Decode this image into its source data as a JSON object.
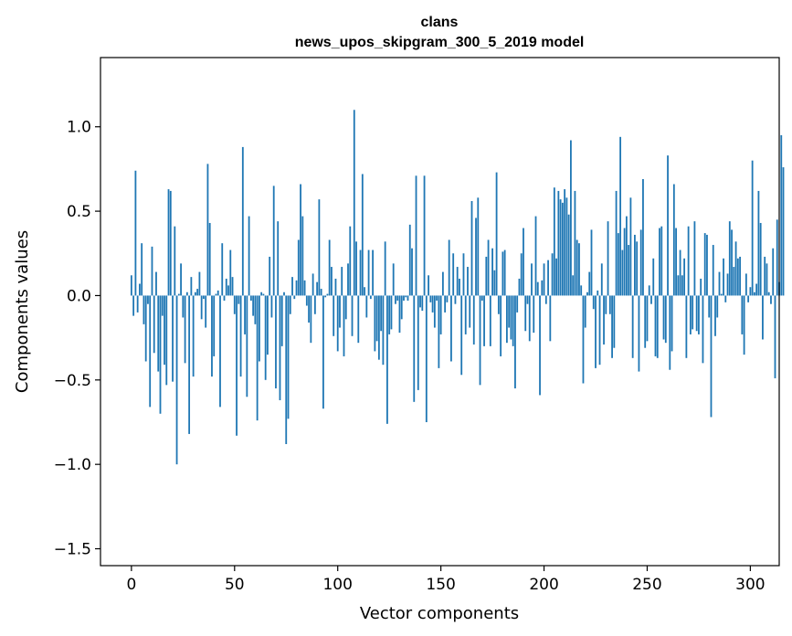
{
  "chart_data": {
    "type": "bar",
    "title_line1": "clans",
    "title_line2": "news_upos_skipgram_300_5_2019 model",
    "xlabel": "Vector components",
    "ylabel": "Components values",
    "xlim": [
      -15,
      314
    ],
    "ylim": [
      -1.6,
      1.41
    ],
    "xticks": [
      0,
      50,
      100,
      150,
      200,
      250,
      300
    ],
    "xtick_labels": [
      "0",
      "50",
      "100",
      "150",
      "200",
      "250",
      "300"
    ],
    "yticks": [
      -1.5,
      -1.0,
      -0.5,
      0.0,
      0.5,
      1.0
    ],
    "ytick_labels": [
      "−1.5",
      "−1.0",
      "−0.5",
      "0.0",
      "0.5",
      "1.0"
    ],
    "bar_color": "#1f77b4",
    "series": [
      {
        "name": "clans",
        "values": [
          0.12,
          -0.12,
          0.74,
          -0.1,
          0.07,
          0.31,
          -0.17,
          -0.39,
          -0.05,
          -0.66,
          0.29,
          -0.34,
          0.14,
          -0.45,
          -0.7,
          -0.12,
          -0.41,
          -0.53,
          0.63,
          0.62,
          -0.51,
          0.41,
          -1.0,
          0.01,
          0.19,
          -0.13,
          -0.4,
          0.02,
          -0.82,
          0.11,
          -0.48,
          0.02,
          0.04,
          0.14,
          -0.14,
          -0.02,
          -0.19,
          0.78,
          0.43,
          -0.48,
          -0.36,
          0.01,
          0.03,
          -0.66,
          0.31,
          -0.03,
          0.1,
          0.06,
          0.27,
          0.11,
          -0.11,
          -0.83,
          -0.05,
          -0.48,
          0.88,
          -0.23,
          -0.6,
          0.47,
          -0.03,
          -0.12,
          -0.17,
          -0.74,
          -0.39,
          0.02,
          0.01,
          -0.5,
          -0.35,
          0.23,
          -0.13,
          0.65,
          -0.55,
          0.44,
          -0.62,
          -0.3,
          0.02,
          -0.88,
          -0.73,
          -0.11,
          0.11,
          -0.02,
          0.09,
          0.33,
          0.66,
          0.47,
          0.09,
          -0.06,
          -0.16,
          -0.28,
          0.13,
          -0.11,
          0.08,
          0.57,
          0.04,
          -0.67,
          -0.01,
          0.01,
          0.33,
          0.17,
          -0.24,
          0.1,
          -0.33,
          -0.19,
          0.17,
          -0.36,
          -0.14,
          0.19,
          0.41,
          -0.24,
          1.1,
          0.32,
          -0.28,
          0.27,
          0.72,
          0.05,
          -0.13,
          0.27,
          -0.02,
          0.27,
          -0.33,
          -0.27,
          -0.38,
          -0.21,
          -0.41,
          0.32,
          -0.76,
          -0.23,
          -0.2,
          0.19,
          -0.05,
          -0.03,
          -0.22,
          -0.14,
          -0.03,
          -0.01,
          -0.03,
          0.42,
          0.28,
          -0.63,
          0.71,
          -0.56,
          -0.07,
          -0.09,
          0.71,
          -0.75,
          0.12,
          -0.04,
          -0.1,
          -0.19,
          -0.03,
          -0.43,
          -0.23,
          0.14,
          -0.1,
          -0.04,
          0.33,
          -0.39,
          0.25,
          -0.05,
          0.17,
          0.1,
          -0.47,
          0.25,
          -0.23,
          0.17,
          -0.19,
          0.56,
          -0.29,
          0.46,
          0.58,
          -0.53,
          -0.03,
          -0.3,
          0.23,
          0.33,
          -0.3,
          0.28,
          0.15,
          0.73,
          -0.11,
          -0.36,
          0.26,
          0.27,
          -0.28,
          -0.19,
          -0.26,
          -0.3,
          -0.55,
          -0.1,
          0.1,
          0.25,
          0.4,
          -0.21,
          -0.05,
          -0.27,
          0.19,
          -0.22,
          0.47,
          0.08,
          -0.59,
          0.09,
          0.19,
          -0.05,
          0.21,
          -0.27,
          0.25,
          0.64,
          0.22,
          0.62,
          0.57,
          0.55,
          0.63,
          0.58,
          0.48,
          0.92,
          0.12,
          0.62,
          0.33,
          0.31,
          0.06,
          -0.52,
          -0.19,
          0.02,
          0.14,
          0.39,
          -0.08,
          -0.43,
          0.03,
          -0.41,
          0.19,
          -0.29,
          -0.11,
          0.44,
          -0.11,
          -0.37,
          -0.31,
          0.62,
          0.37,
          0.94,
          0.27,
          0.4,
          0.47,
          0.3,
          0.58,
          -0.37,
          0.36,
          0.32,
          -0.45,
          0.39,
          0.69,
          -0.31,
          -0.27,
          0.06,
          -0.05,
          0.22,
          -0.36,
          -0.37,
          0.4,
          0.41,
          -0.26,
          -0.28,
          0.83,
          -0.44,
          -0.33,
          0.66,
          0.4,
          0.12,
          0.27,
          0.12,
          0.22,
          -0.37,
          0.41,
          -0.23,
          -0.2,
          0.44,
          -0.21,
          -0.23,
          0.1,
          -0.4,
          0.37,
          0.36,
          -0.13,
          -0.72,
          0.3,
          -0.24,
          -0.13,
          0.14,
          0.01,
          0.22,
          -0.04,
          0.13,
          0.44,
          0.39,
          0.17,
          0.32,
          0.22,
          0.23,
          -0.23,
          -0.35,
          0.13,
          -0.04,
          0.05,
          0.8,
          0.02,
          0.07,
          0.62,
          0.43,
          -0.26,
          0.23,
          0.19,
          0.02,
          -0.05,
          0.28,
          -0.49,
          0.45,
          0.08,
          0.95,
          0.76
        ]
      }
    ]
  }
}
